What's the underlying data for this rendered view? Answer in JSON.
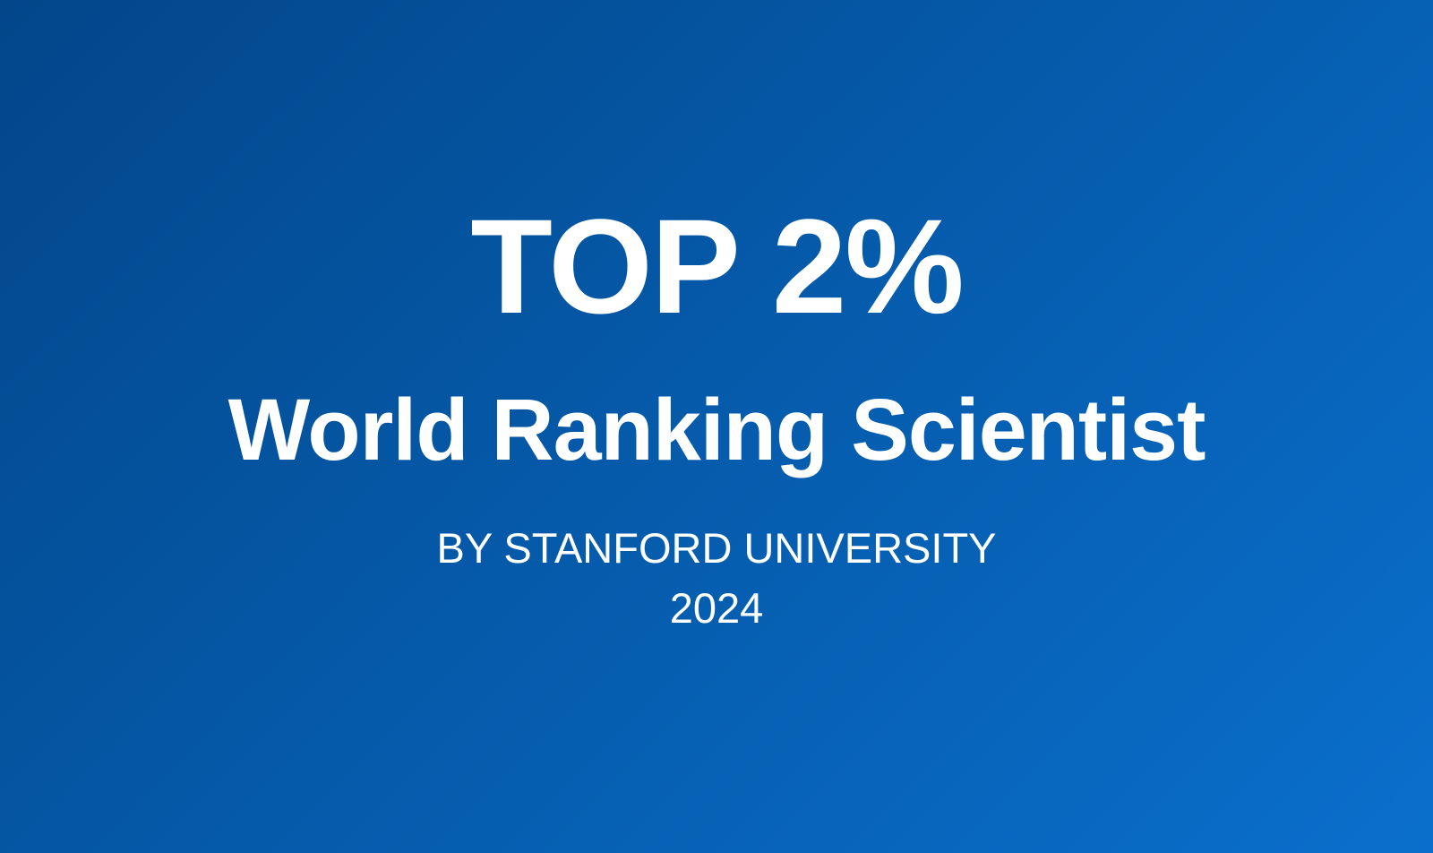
{
  "headline": "TOP 2%",
  "subtitle": "World Ranking Scientist",
  "organization": "BY STANFORD UNIVERSITY",
  "year": "2024",
  "colors": {
    "background_start": "#03468a",
    "background_end": "#0a6fcc",
    "text": "#ffffff"
  }
}
